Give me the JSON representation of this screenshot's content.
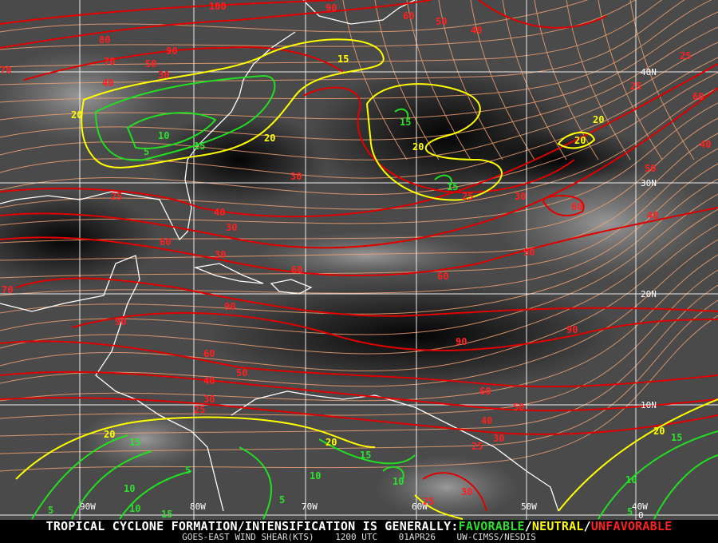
{
  "title": {
    "prefix": "TROPICAL CYCLONE FORMATION/INTENSIFICATION IS GENERALLY:",
    "favorable": "FAVORABLE",
    "sep1": "/",
    "neutral": "NEUTRAL",
    "sep2": "/",
    "unfavorable": "UNFAVORABLE"
  },
  "subtitle": {
    "product": "GOES-EAST WIND SHEAR(KTS)",
    "time": "1200 UTC",
    "date": "01APR26",
    "source": "UW-CIMSS/NESDIS"
  },
  "colors": {
    "favorable": "#2ee02e",
    "neutral": "#ffff00",
    "unfavorable": "#ff2020",
    "streamlines": "#f0a070",
    "grid": "#ffffff",
    "coastline": "#ffffff"
  },
  "grid_labels": {
    "lat": [
      "40N",
      "30N",
      "20N",
      "10N",
      "0"
    ],
    "lon": [
      "90W",
      "80W",
      "70W",
      "60W",
      "50W",
      "40W"
    ]
  },
  "contour_labels": {
    "red": [
      "100",
      "90",
      "80",
      "70",
      "60",
      "50",
      "40",
      "50",
      "40",
      "30",
      "90",
      "70",
      "25",
      "25",
      "60",
      "40",
      "50",
      "30",
      "25",
      "25",
      "30",
      "60",
      "40",
      "40",
      "30",
      "60",
      "30",
      "60",
      "60",
      "90",
      "70",
      "90",
      "90",
      "90",
      "90",
      "60",
      "50",
      "40",
      "30",
      "60",
      "50",
      "40",
      "30",
      "25",
      "25",
      "30",
      "25"
    ],
    "yellow": [
      "15",
      "20",
      "20",
      "20",
      "20",
      "20",
      "20",
      "20",
      "20"
    ],
    "green": [
      "10",
      "5",
      "15",
      "15",
      "15",
      "15",
      "15",
      "10",
      "10",
      "5",
      "10",
      "5",
      "10",
      "15",
      "5",
      "15",
      "10",
      "5"
    ]
  }
}
